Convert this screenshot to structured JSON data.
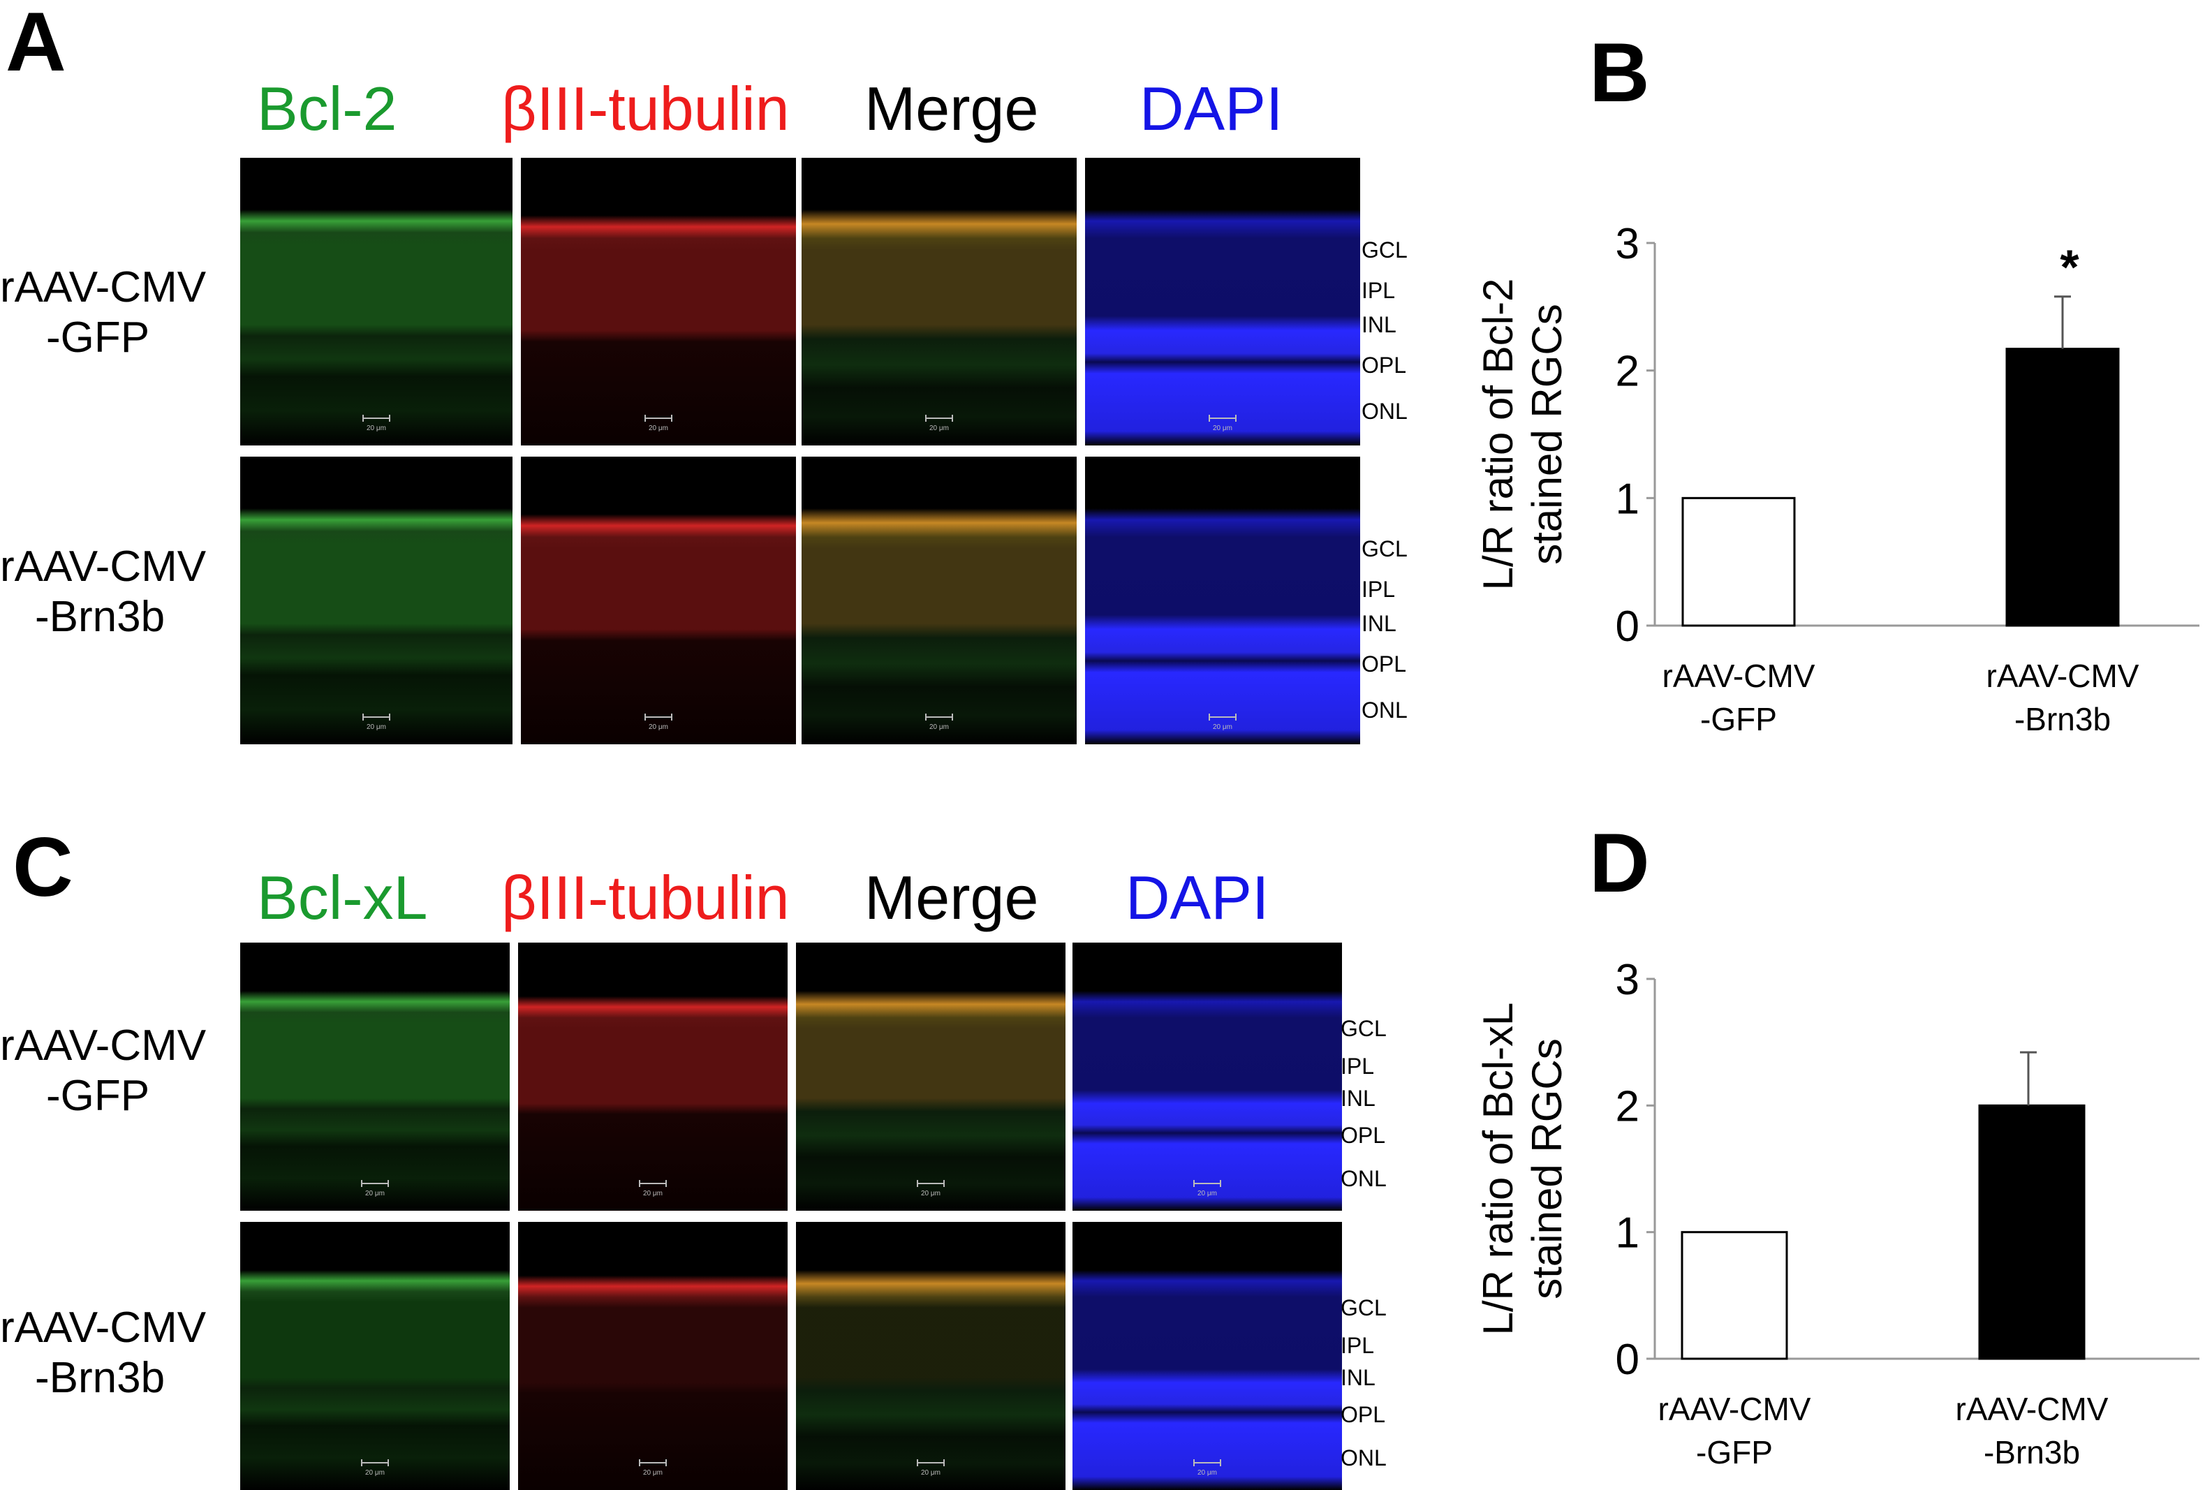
{
  "panels": {
    "A": {
      "letter": "A",
      "columns": [
        "Bcl-2",
        "βIII-tubulin",
        "Merge",
        "DAPI"
      ],
      "rows": [
        {
          "line1": "rAAV-CMV",
          "line2": "-GFP",
          "layers": [
            "GCL",
            "IPL",
            "INL",
            "OPL",
            "ONL"
          ]
        },
        {
          "line1": "rAAV-CMV",
          "line2": "-Brn3b",
          "layers": [
            "GCL",
            "IPL",
            "INL",
            "OPL",
            "ONL"
          ]
        }
      ],
      "scale_label": "20 μm"
    },
    "C": {
      "letter": "C",
      "columns": [
        "Bcl-xL",
        "βIII-tubulin",
        "Merge",
        "DAPI"
      ],
      "rows": [
        {
          "line1": "rAAV-CMV",
          "line2": "-GFP",
          "layers": [
            "GCL",
            "IPL",
            "INL",
            "OPL",
            "ONL"
          ]
        },
        {
          "line1": "rAAV-CMV",
          "line2": "-Brn3b",
          "layers": [
            "GCL",
            "IPL",
            "INL",
            "OPL",
            "ONL"
          ]
        }
      ],
      "scale_label": "20 μm"
    },
    "B": {
      "letter": "B"
    },
    "D": {
      "letter": "D"
    }
  },
  "colors": {
    "green_label": "#1a9a2e",
    "red_label": "#ee1c1c",
    "blue_label": "#1414e6"
  },
  "chart_data": [
    {
      "panel": "B",
      "type": "bar",
      "categories": [
        [
          "rAAV-CMV",
          "-GFP"
        ],
        [
          "rAAV-CMV",
          "-Brn3b"
        ]
      ],
      "values": [
        1.0,
        2.17
      ],
      "errors": [
        0,
        0.41
      ],
      "fills": [
        "#ffffff",
        "#000000"
      ],
      "ylabel_lines": [
        "L/R ratio of Bcl-2",
        "stained RGCs"
      ],
      "yticks": [
        0,
        1,
        2,
        3
      ],
      "ylim": [
        0,
        3
      ],
      "annotations": [
        {
          "category": 1,
          "text": "*"
        }
      ]
    },
    {
      "panel": "D",
      "type": "bar",
      "categories": [
        [
          "rAAV-CMV",
          "-GFP"
        ],
        [
          "rAAV-CMV",
          "-Brn3b"
        ]
      ],
      "values": [
        1.0,
        2.0
      ],
      "errors": [
        0,
        0.42
      ],
      "fills": [
        "#ffffff",
        "#000000"
      ],
      "ylabel_lines": [
        "L/R ratio of Bcl-xL",
        "stained RGCs"
      ],
      "yticks": [
        0,
        1,
        2,
        3
      ],
      "ylim": [
        0,
        3
      ],
      "annotations": []
    }
  ]
}
